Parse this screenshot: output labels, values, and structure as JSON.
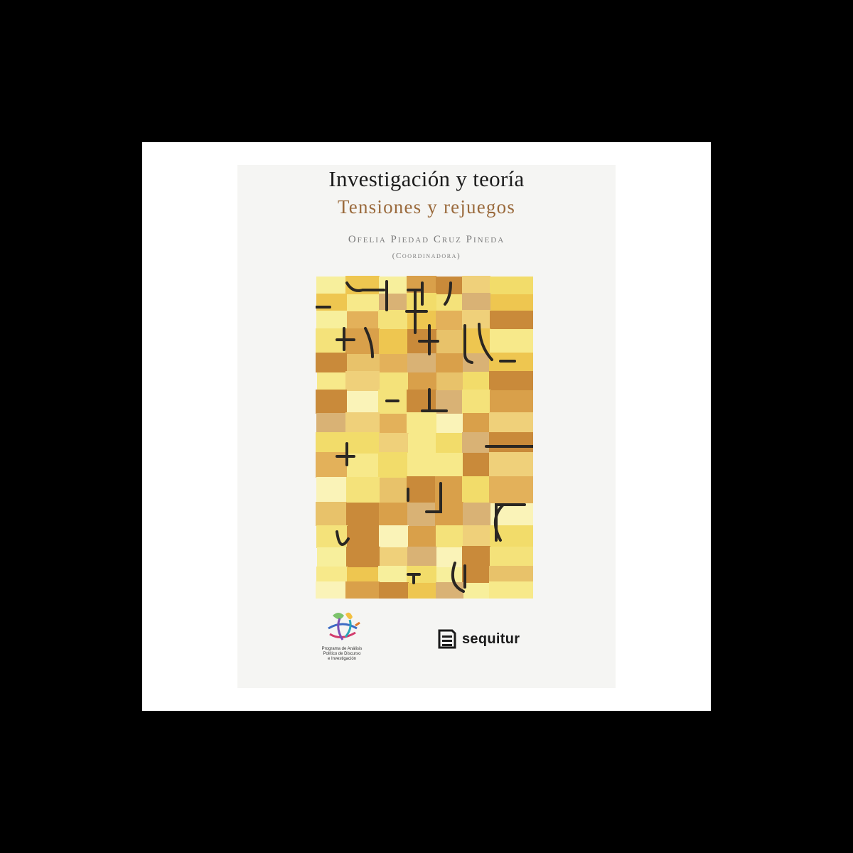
{
  "book": {
    "title": "Investigación y teoría",
    "subtitle": "Tensiones y rejuegos",
    "author": "Ofelia Piedad Cruz Pineda",
    "role": "(Coordinadora)"
  },
  "program": {
    "text": "Programa de Análisis\nPolítico de Discurso\ne Investigación"
  },
  "publisher": {
    "name": "sequitur"
  },
  "colors": {
    "subtitle": "#9a6a3c",
    "palette": [
      "#f2dc6a",
      "#f7e98a",
      "#eec650",
      "#e3b15a",
      "#c98a3a",
      "#d9b275",
      "#f7ef9c",
      "#e8c26a",
      "#faf3b8",
      "#efd07a",
      "#d9a04a",
      "#f4e27a"
    ],
    "glyph_stroke": "#2a2622"
  },
  "icons": {
    "program_logo": "swirl-logo-icon",
    "publisher_logo": "document-lines-icon"
  }
}
